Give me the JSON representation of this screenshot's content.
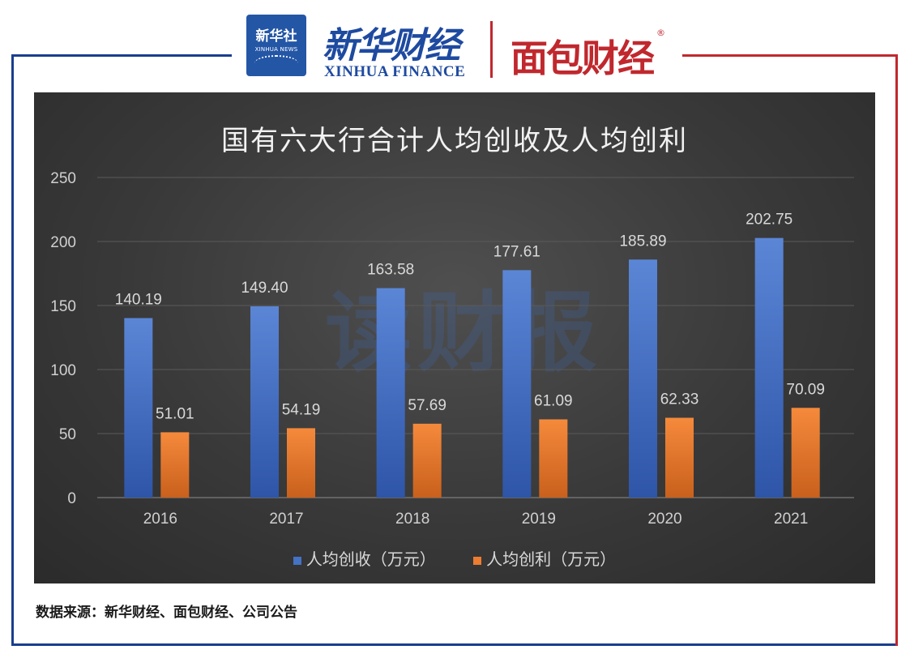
{
  "header": {
    "xinhua_logo_cn": "新华社",
    "xinhua_logo_en": "XINHUA NEWS",
    "finance_cn": "新华财经",
    "finance_en": "XINHUA FINANCE",
    "partner_logo": "面包财经",
    "registered_mark": "®"
  },
  "watermark": "读财报",
  "source_note": "数据来源：新华财经、面包财经、公司公告",
  "colors": {
    "series_revenue": "#4472c4",
    "series_profit": "#ed7d31",
    "frame_blue": "#1a3d8f",
    "frame_red": "#c0282e"
  },
  "chart_data": {
    "type": "bar",
    "title": "国有六大行合计人均创收及人均创利",
    "xlabel": "",
    "ylabel": "",
    "categories": [
      "2016",
      "2017",
      "2018",
      "2019",
      "2020",
      "2021"
    ],
    "ylim": [
      0,
      250
    ],
    "yticks": [
      0,
      50,
      100,
      150,
      200,
      250
    ],
    "grid": true,
    "legend_position": "bottom",
    "series": [
      {
        "name": "人均创收（万元）",
        "values": [
          140.19,
          149.4,
          163.58,
          177.61,
          185.89,
          202.75
        ],
        "labels": [
          "140.19",
          "149.40",
          "163.58",
          "177.61",
          "185.89",
          "202.75"
        ]
      },
      {
        "name": "人均创利（万元）",
        "values": [
          51.01,
          54.19,
          57.69,
          61.09,
          62.33,
          70.09
        ],
        "labels": [
          "51.01",
          "54.19",
          "57.69",
          "61.09",
          "62.33",
          "70.09"
        ]
      }
    ]
  }
}
